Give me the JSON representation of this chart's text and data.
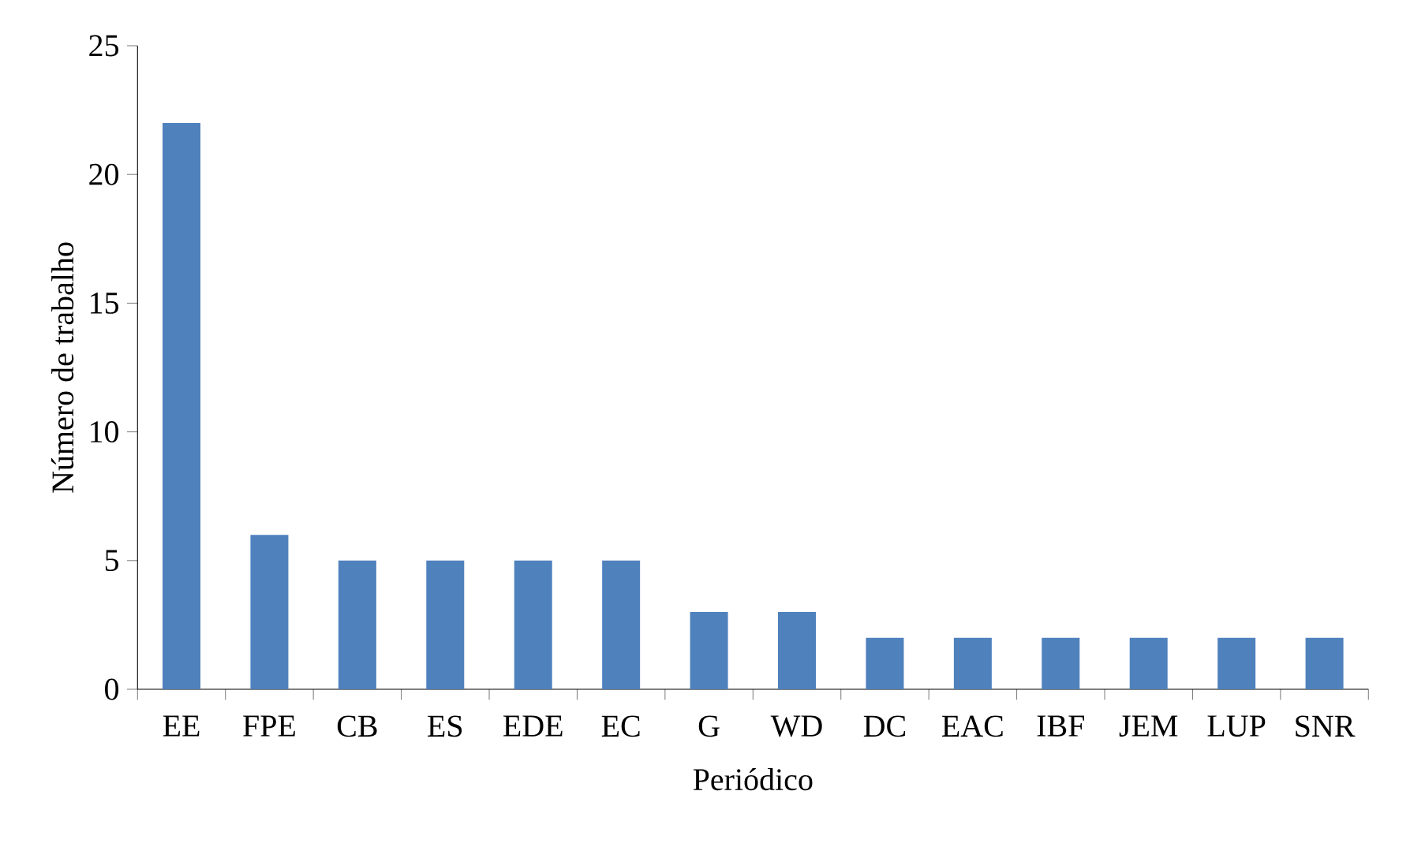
{
  "chart_data": {
    "type": "bar",
    "xlabel": "Periódico",
    "ylabel": "Número de trabalho",
    "categories": [
      "EE",
      "FPE",
      "CB",
      "ES",
      "EDE",
      "EC",
      "G",
      "WD",
      "DC",
      "EAC",
      "IBF",
      "JEM",
      "LUP",
      "SNR"
    ],
    "values": [
      22,
      6,
      5,
      5,
      5,
      5,
      3,
      3,
      2,
      2,
      2,
      2,
      2,
      2
    ],
    "color": "#4f81bd",
    "ylim": [
      0,
      25
    ],
    "yticks": [
      0,
      5,
      10,
      15,
      20,
      25
    ],
    "grid": false
  }
}
